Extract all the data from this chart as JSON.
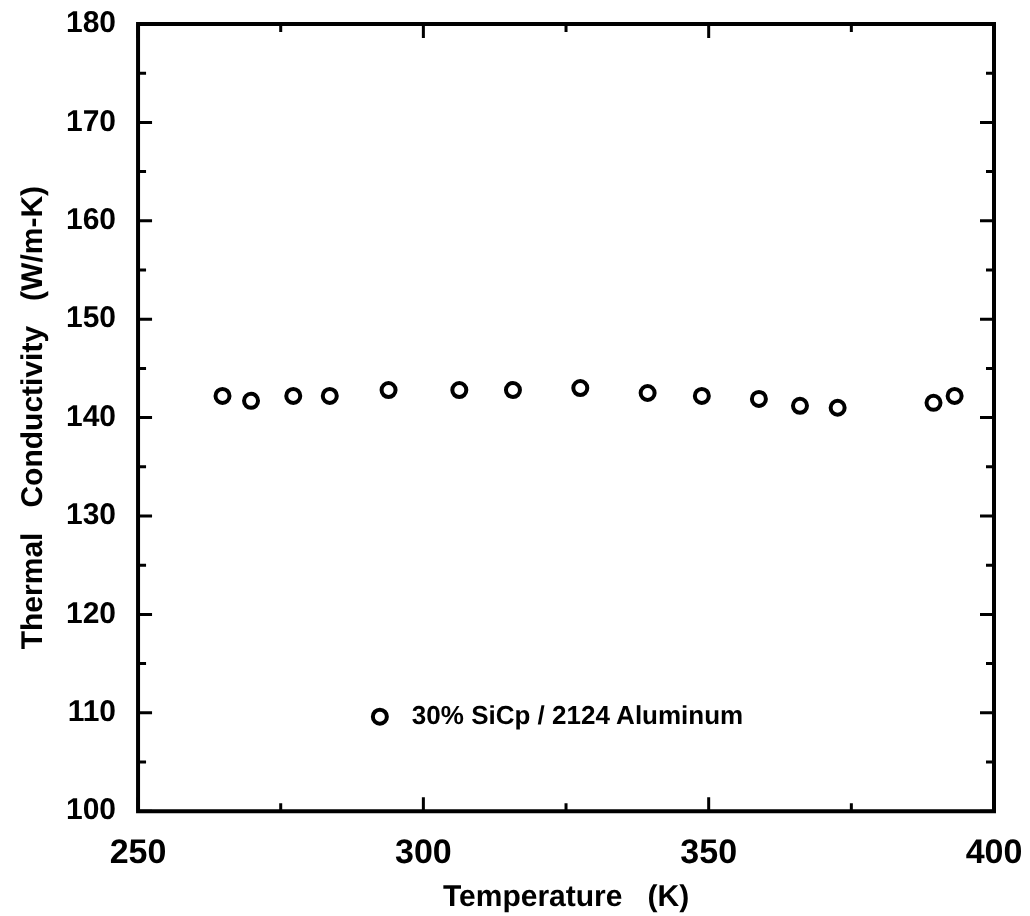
{
  "chart_data": {
    "type": "scatter",
    "xlabel": "Temperature   (K)",
    "ylabel": "Thermal   Conductivity   (W/m-K)",
    "xlim": [
      250,
      400
    ],
    "ylim": [
      100,
      180
    ],
    "xticks": [
      250,
      {
        "value": 275,
        "label": null
      },
      300,
      {
        "value": 325,
        "label": null
      },
      350,
      {
        "value": 375,
        "label": null
      },
      400
    ],
    "yticks": [
      100,
      {
        "value": 105,
        "label": null
      },
      110,
      {
        "value": 115,
        "label": null
      },
      120,
      {
        "value": 125,
        "label": null
      },
      130,
      {
        "value": 135,
        "label": null
      },
      140,
      {
        "value": 145,
        "label": null
      },
      150,
      {
        "value": 155,
        "label": null
      },
      160,
      {
        "value": 165,
        "label": null
      },
      170,
      {
        "value": 175,
        "label": null
      },
      180
    ],
    "grid": false,
    "legend": "bottom",
    "marker": "circle",
    "series": [
      {
        "name": "30% SiCp / 2124 Aluminum",
        "color": "#000000",
        "x": [
          264.8,
          269.8,
          277.2,
          283.6,
          293.9,
          306.3,
          315.7,
          327.5,
          339.3,
          348.8,
          358.8,
          366.0,
          372.6,
          389.4,
          393.1
        ],
        "values": [
          142.2,
          141.7,
          142.2,
          142.2,
          142.8,
          142.8,
          142.8,
          143.0,
          142.5,
          142.2,
          141.9,
          141.2,
          141.0,
          141.5,
          142.2
        ]
      }
    ]
  }
}
